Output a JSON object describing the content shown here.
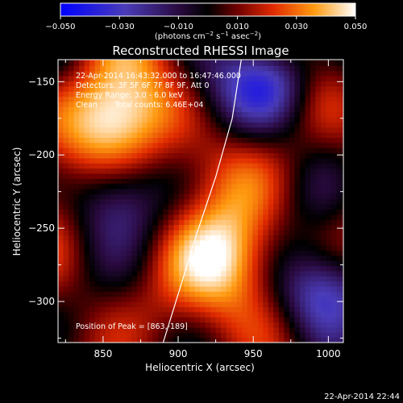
{
  "colorbar": {
    "ticks": [
      "−0.050",
      "−0.030",
      "−0.010",
      "0.010",
      "0.030",
      "0.050"
    ],
    "range": [
      -0.05,
      0.05
    ],
    "unit_main": "(photons cm",
    "unit_e1": "−2",
    "unit_s": " s",
    "unit_e2": "−1",
    "unit_asec": " asec",
    "unit_e3": "−2",
    "unit_close": ")"
  },
  "annotations": {
    "time": "22-Apr-2014 16:43:32.000 to 16:47:46.000",
    "detectors": "Detectors: 3F 5F 6F 7F 8F 9F, Att 0",
    "energy": "Energy Range: 3.0 - 6.0 keV",
    "clean": "Clean       Total counts: 6.46E+04",
    "peak": "Position of Peak = [863,-189]"
  },
  "footer": {
    "timestamp": "22-Apr-2014 22:44"
  },
  "chart_data": {
    "type": "heatmap",
    "title": "Reconstructed RHESSI Image",
    "xlabel": "Heliocentric X (arcsec)",
    "ylabel": "Heliocentric Y (arcsec)",
    "xlim": [
      820,
      1010
    ],
    "ylim": [
      -328,
      -135
    ],
    "xticks": [
      850,
      900,
      950,
      1000
    ],
    "yticks": [
      -150,
      -200,
      -250,
      -300
    ],
    "colorscale": [
      "#0000ff",
      "#5a3aa8",
      "#2a003a",
      "#3a0000",
      "#cc2200",
      "#ff8800",
      "#ffdd22",
      "#ffffff"
    ],
    "peak": [
      863,
      -189
    ],
    "bright_sources": [
      {
        "x": 855,
        "y": -175,
        "intensity": 0.045
      },
      {
        "x": 935,
        "y": -268,
        "intensity": 0.042
      }
    ],
    "dark_sources": [
      {
        "x": 962,
        "y": -148,
        "intensity": -0.04
      },
      {
        "x": 998,
        "y": -292,
        "intensity": -0.045
      },
      {
        "x": 855,
        "y": -228,
        "intensity": -0.025
      }
    ],
    "limb": [
      [
        942,
        -135
      ],
      [
        936,
        -175
      ],
      [
        925,
        -215
      ],
      [
        912,
        -255
      ],
      [
        900,
        -295
      ],
      [
        890,
        -328
      ]
    ]
  }
}
